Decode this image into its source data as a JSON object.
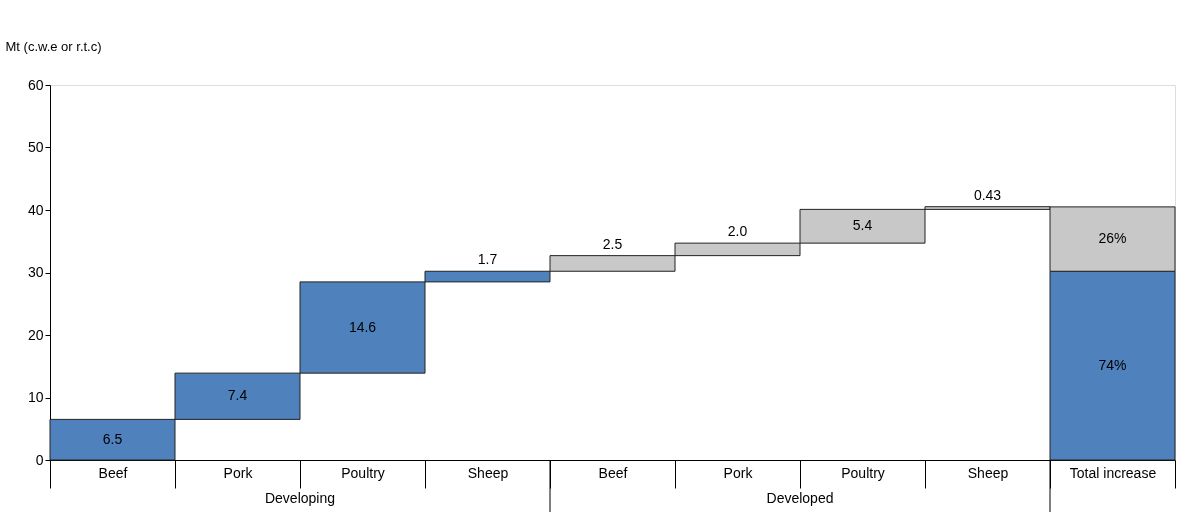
{
  "chart_data": {
    "type": "bar",
    "ylabel": "Mt (c.w.e or r.t.c)",
    "categories": [
      "Beef",
      "Pork",
      "Poultry",
      "Sheep",
      "Beef",
      "Pork",
      "Poultry",
      "Sheep",
      "Total increase"
    ],
    "series": [
      {
        "color": "#4f81bd",
        "values": [
          6.5,
          7.4,
          14.6,
          1.7,
          null,
          null,
          null,
          null,
          30.2
        ],
        "base": [
          0,
          6.5,
          13.9,
          28.5,
          null,
          null,
          null,
          null,
          0
        ],
        "value_labels": [
          "6.5",
          "7.4",
          "14.6",
          "1.7",
          null,
          null,
          null,
          null,
          null
        ]
      },
      {
        "color": "#c8c8c8",
        "values": [
          null,
          null,
          null,
          null,
          2.5,
          2.0,
          5.4,
          0.43,
          10.3
        ],
        "base": [
          null,
          null,
          null,
          null,
          30.2,
          32.7,
          34.7,
          40.1,
          30.2
        ],
        "value_labels": [
          null,
          null,
          null,
          null,
          "2.5",
          "2.0",
          "5.4",
          "0.43",
          null
        ]
      }
    ],
    "ylim": [
      0,
      60
    ],
    "yticks": [
      0,
      10,
      20,
      30,
      40,
      50,
      60
    ],
    "grid": false,
    "annotations": [
      "Developing",
      "Developed",
      "74%",
      "26%"
    ]
  }
}
